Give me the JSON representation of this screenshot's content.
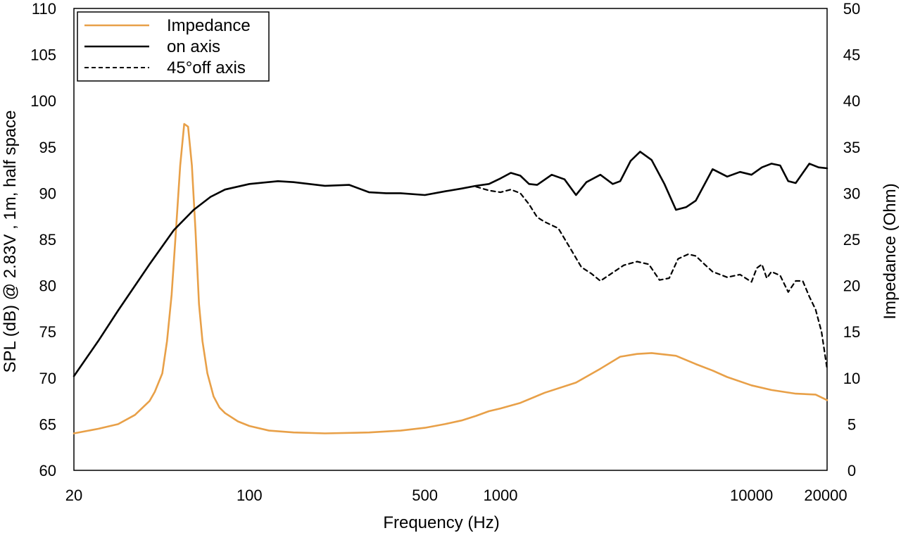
{
  "chart_data": {
    "type": "line",
    "xlabel": "Frequency (Hz)",
    "ylabel_left": "SPL (dB) @ 2.83V , 1m, half space",
    "ylabel_right": "Impedance (Ohm)",
    "x_scale": "log",
    "xlim": [
      20,
      20000
    ],
    "ylim_left": [
      60,
      110
    ],
    "ylim_right": [
      0,
      50
    ],
    "x_ticks": [
      20,
      100,
      500,
      1000,
      10000,
      20000
    ],
    "x_tick_labels": [
      "20",
      "100",
      "500",
      "1000",
      "10000",
      "20000"
    ],
    "y_ticks_left": [
      "60",
      "65",
      "70",
      "75",
      "80",
      "85",
      "90",
      "95",
      "100",
      "105",
      "110"
    ],
    "y_ticks_right": [
      "0",
      "5",
      "10",
      "15",
      "20",
      "25",
      "30",
      "35",
      "40",
      "45",
      "50"
    ],
    "grid": false,
    "legend_position": "top-left",
    "series": [
      {
        "name": "Impedance",
        "axis": "right",
        "color": "#E8A048",
        "style": "solid",
        "points": [
          [
            20,
            4.0
          ],
          [
            25,
            4.5
          ],
          [
            30,
            5.0
          ],
          [
            35,
            6.0
          ],
          [
            40,
            7.5
          ],
          [
            42,
            8.5
          ],
          [
            45,
            10.5
          ],
          [
            47,
            14
          ],
          [
            49,
            19
          ],
          [
            51,
            26
          ],
          [
            53,
            33
          ],
          [
            55,
            37.5
          ],
          [
            57,
            37.2
          ],
          [
            59,
            33
          ],
          [
            61,
            26
          ],
          [
            63,
            18
          ],
          [
            65,
            14
          ],
          [
            68,
            10.5
          ],
          [
            72,
            8.0
          ],
          [
            76,
            6.8
          ],
          [
            80,
            6.2
          ],
          [
            90,
            5.3
          ],
          [
            100,
            4.8
          ],
          [
            120,
            4.3
          ],
          [
            150,
            4.1
          ],
          [
            200,
            4.0
          ],
          [
            300,
            4.1
          ],
          [
            400,
            4.3
          ],
          [
            500,
            4.6
          ],
          [
            600,
            5.0
          ],
          [
            700,
            5.4
          ],
          [
            800,
            5.9
          ],
          [
            900,
            6.4
          ],
          [
            1000,
            6.7
          ],
          [
            1200,
            7.3
          ],
          [
            1500,
            8.4
          ],
          [
            2000,
            9.5
          ],
          [
            2500,
            11.0
          ],
          [
            3000,
            12.3
          ],
          [
            3500,
            12.6
          ],
          [
            4000,
            12.7
          ],
          [
            5000,
            12.4
          ],
          [
            6000,
            11.5
          ],
          [
            7000,
            10.8
          ],
          [
            8000,
            10.1
          ],
          [
            10000,
            9.2
          ],
          [
            12000,
            8.7
          ],
          [
            15000,
            8.3
          ],
          [
            18000,
            8.2
          ],
          [
            20000,
            7.6
          ]
        ]
      },
      {
        "name": "on axis",
        "axis": "left",
        "color": "#000000",
        "style": "solid",
        "points": [
          [
            20,
            70.2
          ],
          [
            25,
            74.0
          ],
          [
            30,
            77.3
          ],
          [
            40,
            82.3
          ],
          [
            50,
            86.0
          ],
          [
            60,
            88.2
          ],
          [
            70,
            89.6
          ],
          [
            80,
            90.4
          ],
          [
            100,
            91.0
          ],
          [
            130,
            91.3
          ],
          [
            150,
            91.2
          ],
          [
            200,
            90.8
          ],
          [
            250,
            90.9
          ],
          [
            300,
            90.1
          ],
          [
            350,
            90.0
          ],
          [
            400,
            90.0
          ],
          [
            500,
            89.8
          ],
          [
            600,
            90.2
          ],
          [
            700,
            90.5
          ],
          [
            800,
            90.8
          ],
          [
            900,
            91.0
          ],
          [
            1000,
            91.6
          ],
          [
            1100,
            92.2
          ],
          [
            1200,
            91.9
          ],
          [
            1300,
            91.0
          ],
          [
            1400,
            90.9
          ],
          [
            1600,
            92.0
          ],
          [
            1800,
            91.5
          ],
          [
            2000,
            89.8
          ],
          [
            2200,
            91.2
          ],
          [
            2500,
            92.0
          ],
          [
            2800,
            91.0
          ],
          [
            3000,
            91.3
          ],
          [
            3300,
            93.5
          ],
          [
            3600,
            94.5
          ],
          [
            4000,
            93.6
          ],
          [
            4500,
            91.0
          ],
          [
            5000,
            88.2
          ],
          [
            5500,
            88.5
          ],
          [
            6000,
            89.2
          ],
          [
            7000,
            92.6
          ],
          [
            8000,
            91.8
          ],
          [
            9000,
            92.3
          ],
          [
            10000,
            92.0
          ],
          [
            11000,
            92.8
          ],
          [
            12000,
            93.2
          ],
          [
            13000,
            93.0
          ],
          [
            14000,
            91.3
          ],
          [
            15000,
            91.1
          ],
          [
            17000,
            93.2
          ],
          [
            18500,
            92.8
          ],
          [
            20000,
            92.7
          ]
        ]
      },
      {
        "name": "45°off axis",
        "axis": "left",
        "color": "#000000",
        "style": "dashed",
        "points": [
          [
            800,
            90.7
          ],
          [
            900,
            90.3
          ],
          [
            1000,
            90.1
          ],
          [
            1100,
            90.4
          ],
          [
            1200,
            90.0
          ],
          [
            1300,
            88.8
          ],
          [
            1400,
            87.4
          ],
          [
            1500,
            86.9
          ],
          [
            1700,
            86.2
          ],
          [
            1900,
            84.0
          ],
          [
            2100,
            82.0
          ],
          [
            2300,
            81.3
          ],
          [
            2500,
            80.5
          ],
          [
            2800,
            81.4
          ],
          [
            3100,
            82.2
          ],
          [
            3500,
            82.6
          ],
          [
            3900,
            82.3
          ],
          [
            4300,
            80.6
          ],
          [
            4700,
            80.8
          ],
          [
            5100,
            82.9
          ],
          [
            5600,
            83.4
          ],
          [
            6000,
            83.2
          ],
          [
            6500,
            82.3
          ],
          [
            7000,
            81.5
          ],
          [
            8000,
            80.9
          ],
          [
            9000,
            81.2
          ],
          [
            10000,
            80.4
          ],
          [
            10500,
            81.9
          ],
          [
            11000,
            82.3
          ],
          [
            11500,
            80.8
          ],
          [
            12000,
            81.5
          ],
          [
            13000,
            81.1
          ],
          [
            14000,
            79.3
          ],
          [
            15000,
            80.5
          ],
          [
            16000,
            80.5
          ],
          [
            17000,
            78.8
          ],
          [
            18000,
            77.4
          ],
          [
            19000,
            75.0
          ],
          [
            20000,
            71.0
          ]
        ]
      }
    ]
  }
}
